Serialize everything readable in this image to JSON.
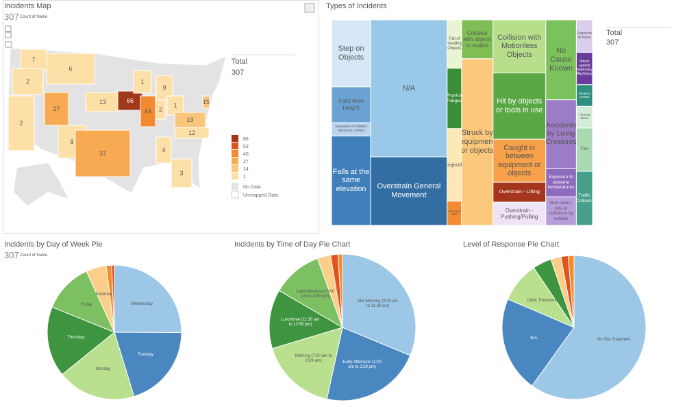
{
  "chart_data": [
    {
      "type": "map",
      "title": "Incidents Map",
      "count": 307,
      "count_label": "Count of Name",
      "values": [
        7,
        2,
        2,
        6,
        27,
        8,
        13,
        66,
        44,
        1,
        9,
        2,
        1,
        15,
        19,
        12,
        37,
        4,
        3
      ],
      "legend": [
        66,
        53,
        40,
        27,
        14,
        1
      ],
      "legend_colors": [
        "#a0381a",
        "#e2541f",
        "#f28a32",
        "#f7aa52",
        "#fbc57c",
        "#fde0a8"
      ],
      "no_data_label": "No Data",
      "unmapped_label": "Unmapped Data",
      "total_label": "Total",
      "total": 307
    },
    {
      "type": "treemap",
      "title": "Types of Incidents",
      "total_label": "Total",
      "total": 307,
      "categories": [
        "Step on Objects",
        "Falls from Height",
        "Exposure or indirect electrical contact",
        "Falls at the same elevation",
        "N/A",
        "Overstrain General Movement",
        "Fall of Handling Objects",
        "Physical Fatigue",
        "Projectile",
        "Chemical Spill",
        "Collision with objects in motion",
        "Struck by equipment or objects",
        "Collision with Motionless Objects",
        "Hit by objects or tools in use",
        "Caught in between equipment or objects",
        "Overstrain - Lifting",
        "Overstrain - Pushing/Pulling",
        "No Cause Known",
        "Accidents by Living Creatures",
        "Exposure to extreme temperatures",
        "Run overs, hits or collisions by vehicle",
        "Exposure to Noise",
        "Struck against Stationary Machinery",
        "Electrical Contact",
        "Thermal Stress",
        "Fire",
        "Traffic Collision"
      ],
      "values": [
        15,
        8,
        3,
        20,
        60,
        30,
        4,
        5,
        6,
        2,
        7,
        30,
        16,
        20,
        13,
        6,
        7,
        14,
        12,
        5,
        5,
        3,
        3,
        2,
        2,
        4,
        5
      ],
      "colors": [
        "#d6e8f7",
        "#6aa3d3",
        "#b9d5ee",
        "#3f7fba",
        "#9ac8e8",
        "#336ea3",
        "#e8f5d0",
        "#3c8e34",
        "#fde9b5",
        "#f48b30",
        "#7ebe55",
        "#fcc97c",
        "#b7df8b",
        "#5aa845",
        "#f6a049",
        "#a3361c",
        "#efe3f6",
        "#7cc25c",
        "#9d7cc6",
        "#8e6bbd",
        "#b79edb",
        "#dccdef",
        "#6a3d9a",
        "#2f8e7e",
        "#d2ecd8",
        "#a9d9b0",
        "#47a08c"
      ]
    },
    {
      "type": "pie",
      "title": "Incidents by Day of Week Pie",
      "count": 307,
      "count_label": "Count of Name",
      "categories": [
        "Wednesday",
        "Tuesday",
        "Monday",
        "Thursday",
        "Friday",
        "Saturday",
        null,
        null
      ],
      "values": [
        77,
        62,
        58,
        52,
        37,
        15,
        4,
        2
      ],
      "colors": [
        "#9cc7e6",
        "#4a87c0",
        "#b9e08e",
        "#3f9440",
        "#7dc062",
        "#fbcf8a",
        "#f28c2d",
        "#d94b1c"
      ]
    },
    {
      "type": "pie",
      "title": "Incidents by Time of Day Pie Chart",
      "categories": [
        "Mid Morning (9:00 am to 11:30 am)",
        "Early Afternoon (1:00 pm to 2:59 pm)",
        "Morning (7:00 am to 8:59 am)",
        "Lunchtime (11:30 am to 12:59 pm)",
        "Later Afternoon (3:00 pm to 4:59 pm)",
        null,
        null,
        null
      ],
      "values": [
        96,
        68,
        52,
        40,
        34,
        9,
        5,
        3
      ],
      "colors": [
        "#9cc7e6",
        "#4a87c0",
        "#b9e08e",
        "#3f9440",
        "#7dc062",
        "#fbcf8a",
        "#e2541f",
        "#f28c2d"
      ]
    },
    {
      "type": "pie",
      "title": "Level of Response Pie Chart",
      "categories": [
        "On Site Treatment",
        "N/A",
        "Clinic Treatment",
        null,
        null,
        null,
        null
      ],
      "values": [
        184,
        66,
        28,
        13,
        7,
        5,
        4
      ],
      "colors": [
        "#9cc7e6",
        "#4a87c0",
        "#b9e08e",
        "#3f9440",
        "#fbcf8a",
        "#e2541f",
        "#f28c2d"
      ]
    }
  ]
}
